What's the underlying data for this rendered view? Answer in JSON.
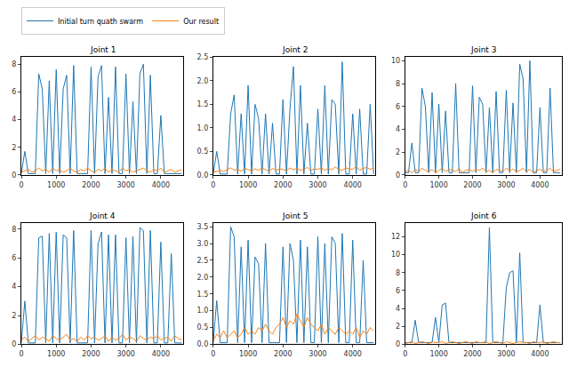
{
  "chart_data": [
    {
      "type": "line",
      "title": "Joint 1",
      "legend": "top",
      "x": [
        0,
        100,
        200,
        300,
        400,
        500,
        600,
        700,
        800,
        900,
        1000,
        1100,
        1200,
        1300,
        1400,
        1500,
        1600,
        1700,
        1800,
        1900,
        2000,
        2100,
        2200,
        2300,
        2400,
        2500,
        2600,
        2700,
        2800,
        2900,
        3000,
        3100,
        3200,
        3300,
        3400,
        3500,
        3600,
        3700,
        3800,
        3900,
        4000,
        4100,
        4200,
        4300,
        4400,
        4500,
        4600
      ],
      "xlim": [
        0,
        4650
      ],
      "xticks": [
        0,
        1000,
        2000,
        3000,
        4000
      ],
      "ylim": [
        0,
        8.5
      ],
      "yticks": [
        0,
        2,
        4,
        6,
        8
      ],
      "series": [
        {
          "name": "Initial turn quath swarm",
          "color": "#1f77b4",
          "values": [
            0.1,
            1.7,
            0.1,
            0.1,
            0.1,
            7.3,
            6.2,
            0.1,
            6.8,
            0.1,
            7.6,
            0.1,
            6.2,
            7.2,
            0.1,
            7.9,
            0.1,
            0.1,
            0.1,
            0.1,
            7.8,
            0.1,
            7.1,
            7.9,
            0.1,
            5.6,
            0.1,
            7.8,
            0.1,
            0.1,
            7.3,
            0.1,
            5.3,
            0.1,
            7.3,
            8.0,
            0.1,
            7.2,
            0.1,
            0.1,
            4.3,
            0.1,
            0.1,
            0.1,
            0.1,
            0.1,
            0.1
          ]
        },
        {
          "name": "Our result",
          "color": "#ff7f0e",
          "values": [
            0.2,
            0.3,
            0.4,
            0.2,
            0.3,
            0.5,
            0.3,
            0.4,
            0.2,
            0.5,
            0.3,
            0.4,
            0.2,
            0.3,
            0.5,
            0.3,
            0.2,
            0.4,
            0.3,
            0.5,
            0.3,
            0.2,
            0.4,
            0.3,
            0.5,
            0.2,
            0.4,
            0.3,
            0.2,
            0.5,
            0.3,
            0.4,
            0.2,
            0.3,
            0.4,
            0.5,
            0.3,
            0.2,
            0.4,
            0.3,
            0.5,
            0.2,
            0.3,
            0.4,
            0.2,
            0.3,
            0.4
          ]
        }
      ]
    },
    {
      "type": "line",
      "title": "Joint 2",
      "x": [
        0,
        100,
        200,
        300,
        400,
        500,
        600,
        700,
        800,
        900,
        1000,
        1100,
        1200,
        1300,
        1400,
        1500,
        1600,
        1700,
        1800,
        1900,
        2000,
        2100,
        2200,
        2300,
        2400,
        2500,
        2600,
        2700,
        2800,
        2900,
        3000,
        3100,
        3200,
        3300,
        3400,
        3500,
        3600,
        3700,
        3800,
        3900,
        4000,
        4100,
        4200,
        4300,
        4400,
        4500,
        4600
      ],
      "xlim": [
        0,
        4650
      ],
      "xticks": [
        0,
        1000,
        2000,
        3000,
        4000
      ],
      "ylim": [
        0,
        2.5
      ],
      "yticks": [
        {
          "value": 0,
          "label": "0.0"
        },
        0.5,
        {
          "value": 1,
          "label": "1.0"
        },
        1.5,
        {
          "value": 2,
          "label": "2.0"
        },
        2.5
      ],
      "series": [
        {
          "name": "Initial turn quath swarm",
          "color": "#1f77b4",
          "values": [
            0.02,
            0.5,
            0.02,
            0.02,
            0.02,
            1.3,
            1.7,
            0.02,
            1.3,
            0.02,
            1.9,
            0.02,
            1.5,
            1.2,
            0.02,
            1.3,
            0.02,
            1.1,
            0.02,
            0.02,
            1.6,
            0.02,
            1.4,
            2.3,
            0.02,
            1.9,
            0.02,
            1.1,
            0.02,
            0.02,
            1.4,
            0.02,
            1.9,
            0.02,
            1.6,
            1.5,
            0.02,
            2.4,
            0.02,
            0.02,
            1.3,
            0.02,
            1.4,
            0.02,
            0.02,
            1.5,
            0.02
          ]
        },
        {
          "name": "Our result",
          "color": "#ff7f0e",
          "values": [
            0.05,
            0.08,
            0.1,
            0.07,
            0.12,
            0.15,
            0.1,
            0.12,
            0.08,
            0.14,
            0.11,
            0.09,
            0.13,
            0.1,
            0.15,
            0.12,
            0.08,
            0.14,
            0.1,
            0.13,
            0.12,
            0.09,
            0.15,
            0.11,
            0.14,
            0.1,
            0.12,
            0.16,
            0.09,
            0.13,
            0.12,
            0.15,
            0.1,
            0.14,
            0.11,
            0.17,
            0.12,
            0.1,
            0.15,
            0.13,
            0.12,
            0.18,
            0.1,
            0.14,
            0.16,
            0.12,
            0.15
          ]
        }
      ]
    },
    {
      "type": "line",
      "title": "Joint 3",
      "x": [
        0,
        100,
        200,
        300,
        400,
        500,
        600,
        700,
        800,
        900,
        1000,
        1100,
        1200,
        1300,
        1400,
        1500,
        1600,
        1700,
        1800,
        1900,
        2000,
        2100,
        2200,
        2300,
        2400,
        2500,
        2600,
        2700,
        2800,
        2900,
        3000,
        3100,
        3200,
        3300,
        3400,
        3500,
        3600,
        3700,
        3800,
        3900,
        4000,
        4100,
        4200,
        4300,
        4400,
        4500,
        4600
      ],
      "xlim": [
        0,
        4650
      ],
      "xticks": [
        0,
        1000,
        2000,
        3000,
        4000
      ],
      "ylim": [
        0,
        10.3
      ],
      "yticks": [
        0,
        2,
        4,
        6,
        8,
        10
      ],
      "series": [
        {
          "name": "Initial turn quath swarm",
          "color": "#1f77b4",
          "values": [
            0.2,
            0.2,
            2.8,
            0.2,
            0.2,
            7.6,
            6.0,
            0.2,
            7.2,
            0.2,
            6.2,
            0.2,
            5.6,
            0.2,
            0.2,
            8.0,
            0.2,
            0.2,
            0.2,
            0.2,
            7.8,
            0.2,
            6.8,
            6.2,
            0.2,
            5.9,
            0.2,
            7.3,
            0.2,
            0.2,
            7.4,
            0.2,
            6.3,
            0.2,
            9.7,
            8.4,
            0.2,
            10.0,
            0.2,
            0.2,
            5.9,
            0.2,
            0.2,
            7.6,
            0.2,
            0.2,
            0.2
          ]
        },
        {
          "name": "Our result",
          "color": "#ff7f0e",
          "values": [
            0.3,
            0.4,
            0.2,
            0.5,
            0.3,
            0.6,
            0.4,
            0.3,
            0.5,
            0.2,
            0.4,
            0.6,
            0.3,
            0.5,
            0.4,
            0.3,
            0.6,
            0.2,
            0.4,
            0.5,
            0.3,
            0.5,
            0.4,
            0.6,
            0.3,
            0.4,
            0.2,
            0.5,
            0.4,
            0.3,
            0.6,
            0.4,
            0.5,
            0.3,
            0.4,
            0.6,
            0.3,
            0.5,
            0.2,
            0.4,
            0.5,
            0.3,
            0.4,
            0.6,
            0.3,
            0.4,
            0.5
          ]
        }
      ]
    },
    {
      "type": "line",
      "title": "Joint 4",
      "x": [
        0,
        100,
        200,
        300,
        400,
        500,
        600,
        700,
        800,
        900,
        1000,
        1100,
        1200,
        1300,
        1400,
        1500,
        1600,
        1700,
        1800,
        1900,
        2000,
        2100,
        2200,
        2300,
        2400,
        2500,
        2600,
        2700,
        2800,
        2900,
        3000,
        3100,
        3200,
        3300,
        3400,
        3500,
        3600,
        3700,
        3800,
        3900,
        4000,
        4100,
        4200,
        4300,
        4400,
        4500,
        4600
      ],
      "xlim": [
        0,
        4650
      ],
      "xticks": [
        0,
        1000,
        2000,
        3000,
        4000
      ],
      "ylim": [
        0,
        8.4
      ],
      "yticks": [
        0,
        2,
        4,
        6,
        8
      ],
      "series": [
        {
          "name": "Initial turn quath swarm",
          "color": "#1f77b4",
          "values": [
            0.1,
            3.0,
            0.1,
            0.1,
            0.1,
            7.4,
            7.5,
            0.1,
            7.7,
            0.1,
            7.8,
            0.1,
            7.6,
            7.4,
            0.1,
            7.9,
            0.1,
            0.1,
            0.1,
            0.1,
            7.9,
            0.1,
            7.0,
            7.8,
            0.1,
            7.6,
            0.1,
            7.6,
            0.1,
            0.1,
            7.4,
            0.1,
            7.5,
            0.1,
            8.1,
            7.9,
            0.1,
            7.9,
            0.1,
            0.1,
            7.1,
            0.1,
            0.1,
            6.3,
            0.1,
            0.1,
            0.1
          ]
        },
        {
          "name": "Our result",
          "color": "#ff7f0e",
          "values": [
            0.3,
            0.5,
            0.2,
            0.4,
            0.6,
            0.3,
            0.5,
            0.4,
            0.2,
            0.6,
            0.4,
            0.3,
            0.5,
            0.7,
            0.3,
            0.4,
            0.2,
            0.5,
            0.3,
            0.6,
            0.4,
            0.5,
            0.3,
            0.4,
            0.6,
            0.2,
            0.5,
            0.3,
            0.4,
            0.7,
            0.3,
            0.5,
            0.4,
            0.2,
            0.6,
            0.4,
            0.3,
            0.5,
            0.4,
            0.6,
            0.3,
            0.4,
            0.5,
            0.2,
            0.6,
            0.4,
            0.3
          ]
        }
      ]
    },
    {
      "type": "line",
      "title": "Joint 5",
      "x": [
        0,
        100,
        200,
        300,
        400,
        500,
        600,
        700,
        800,
        900,
        1000,
        1100,
        1200,
        1300,
        1400,
        1500,
        1600,
        1700,
        1800,
        1900,
        2000,
        2100,
        2200,
        2300,
        2400,
        2500,
        2600,
        2700,
        2800,
        2900,
        3000,
        3100,
        3200,
        3300,
        3400,
        3500,
        3600,
        3700,
        3800,
        3900,
        4000,
        4100,
        4200,
        4300,
        4400,
        4500,
        4600
      ],
      "xlim": [
        0,
        4650
      ],
      "xticks": [
        0,
        1000,
        2000,
        3000,
        4000
      ],
      "ylim": [
        0,
        3.6
      ],
      "yticks": [
        {
          "value": 0,
          "label": "0.0"
        },
        0.5,
        {
          "value": 1,
          "label": "1.0"
        },
        1.5,
        {
          "value": 2,
          "label": "2.0"
        },
        2.5,
        {
          "value": 3,
          "label": "3.0"
        },
        3.5
      ],
      "series": [
        {
          "name": "Initial turn quath swarm",
          "color": "#1f77b4",
          "values": [
            0.05,
            1.3,
            0.05,
            0.05,
            0.05,
            3.5,
            3.2,
            0.05,
            2.9,
            0.05,
            3.1,
            0.05,
            2.6,
            2.4,
            0.05,
            3.0,
            0.05,
            0.05,
            0.05,
            0.05,
            2.9,
            0.05,
            3.0,
            2.5,
            0.05,
            3.1,
            0.05,
            2.9,
            0.05,
            0.05,
            3.2,
            0.05,
            3.0,
            0.05,
            3.2,
            3.0,
            0.05,
            3.3,
            0.05,
            0.05,
            3.1,
            0.05,
            0.05,
            2.5,
            0.05,
            0.05,
            0.05
          ]
        },
        {
          "name": "Our result",
          "color": "#ff7f0e",
          "values": [
            0.1,
            0.3,
            0.2,
            0.4,
            0.2,
            0.3,
            0.4,
            0.2,
            0.3,
            0.5,
            0.3,
            0.4,
            0.3,
            0.5,
            0.4,
            0.6,
            0.4,
            0.3,
            0.5,
            0.6,
            0.8,
            0.5,
            0.7,
            0.6,
            0.9,
            0.7,
            0.5,
            0.8,
            0.6,
            0.5,
            0.4,
            0.6,
            0.3,
            0.5,
            0.4,
            0.3,
            0.5,
            0.4,
            0.3,
            0.4,
            0.3,
            0.5,
            0.2,
            0.4,
            0.3,
            0.5,
            0.4
          ]
        }
      ]
    },
    {
      "type": "line",
      "title": "Joint 6",
      "x": [
        0,
        100,
        200,
        300,
        400,
        500,
        600,
        700,
        800,
        900,
        1000,
        1100,
        1200,
        1300,
        1400,
        1500,
        1600,
        1700,
        1800,
        1900,
        2000,
        2100,
        2200,
        2300,
        2400,
        2500,
        2600,
        2700,
        2800,
        2900,
        3000,
        3100,
        3200,
        3300,
        3400,
        3500,
        3600,
        3700,
        3800,
        3900,
        4000,
        4100,
        4200,
        4300,
        4400,
        4500,
        4600
      ],
      "xlim": [
        0,
        4650
      ],
      "xticks": [
        0,
        1000,
        2000,
        3000,
        4000
      ],
      "ylim": [
        0,
        13.5
      ],
      "yticks": [
        0,
        2,
        4,
        6,
        8,
        10,
        12
      ],
      "series": [
        {
          "name": "Initial turn quath swarm",
          "color": "#1f77b4",
          "values": [
            0.2,
            0.2,
            0.2,
            2.7,
            0.2,
            0.2,
            0.2,
            0.2,
            0.2,
            3.0,
            0.2,
            4.4,
            4.6,
            0.2,
            0.2,
            0.2,
            0.2,
            0.2,
            0.2,
            0.2,
            0.2,
            0.2,
            0.2,
            0.2,
            0.2,
            13.0,
            0.2,
            0.2,
            0.2,
            0.2,
            6.3,
            8.0,
            8.2,
            0.2,
            10.2,
            0.2,
            0.2,
            0.2,
            0.2,
            0.2,
            4.4,
            0.2,
            0.2,
            0.2,
            0.2,
            0.2,
            0.2
          ]
        },
        {
          "name": "Our result",
          "color": "#ff7f0e",
          "values": [
            0.1,
            0.2,
            0.3,
            0.1,
            0.2,
            0.3,
            0.2,
            0.1,
            0.3,
            0.2,
            0.2,
            0.3,
            0.1,
            0.2,
            0.3,
            0.2,
            0.1,
            0.2,
            0.3,
            0.2,
            0.1,
            0.3,
            0.2,
            0.2,
            0.3,
            0.1,
            0.2,
            0.3,
            0.2,
            0.1,
            0.3,
            0.2,
            0.1,
            0.2,
            0.3,
            0.2,
            0.2,
            0.1,
            0.3,
            0.2,
            0.2,
            0.3,
            0.1,
            0.2,
            0.3,
            0.2,
            0.2
          ]
        }
      ]
    }
  ]
}
